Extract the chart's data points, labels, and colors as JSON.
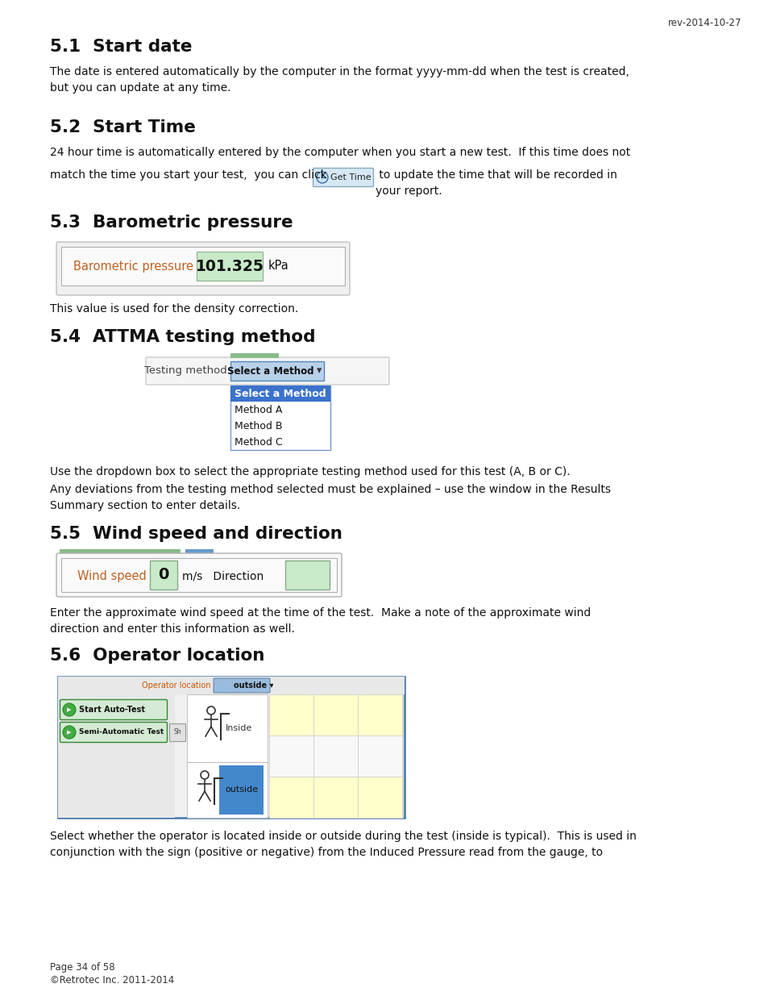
{
  "page_bg": "#ffffff",
  "rev_text": "rev-2014-10-27",
  "footer_line1": "Page 34 of 58",
  "footer_line2": "©Retrotec Inc. 2011-2014",
  "h1_num": "5.1",
  "h1_title": "  Start date",
  "h1_body": "The date is entered automatically by the computer in the format yyyy-mm-dd when the test is created,\nbut you can update at any time.",
  "h2_num": "5.2",
  "h2_title": "  Start Time",
  "h2_body1": "24 hour time is automatically entered by the computer when you start a new test.  If this time does not",
  "h2_body2": "match the time you start your test,  you can click",
  "h2_body3": " to update the time that will be recorded in\nyour report.",
  "get_time_label": "Get Time",
  "h3_num": "5.3",
  "h3_title": "  Barometric pressure",
  "h3_body": "This value is used for the density correction.",
  "baro_label": "Barometric pressure",
  "baro_value": "101.325",
  "baro_unit": "kPa",
  "h4_num": "5.4",
  "h4_title": "  ATTMA testing method",
  "dropdown_label": "Testing method",
  "dropdown_selected": "Select a Method",
  "dropdown_arrow": "▾",
  "dropdown_items": [
    "Select a Method",
    "Method A",
    "Method B",
    "Method C"
  ],
  "h4_body1": "Use the dropdown box to select the appropriate testing method used for this test (A, B or C).",
  "h4_body2": "Any deviations from the testing method selected must be explained – use the window in the Results\nSummary section to enter details.",
  "h5_num": "5.5",
  "h5_title": "  Wind speed and direction",
  "wind_label": "Wind speed",
  "wind_value": "0",
  "wind_unit": "m/s   Direction",
  "h5_body": "Enter the approximate wind speed at the time of the test.  Make a note of the approximate wind\ndirection and enter this information as well.",
  "h6_num": "5.6",
  "h6_title": "  Operator location",
  "h6_body": "Select whether the operator is located inside or outside during the test (inside is typical).  This is used in\nconjunction with the sign (positive or negative) from the Induced Pressure read from the gauge, to"
}
